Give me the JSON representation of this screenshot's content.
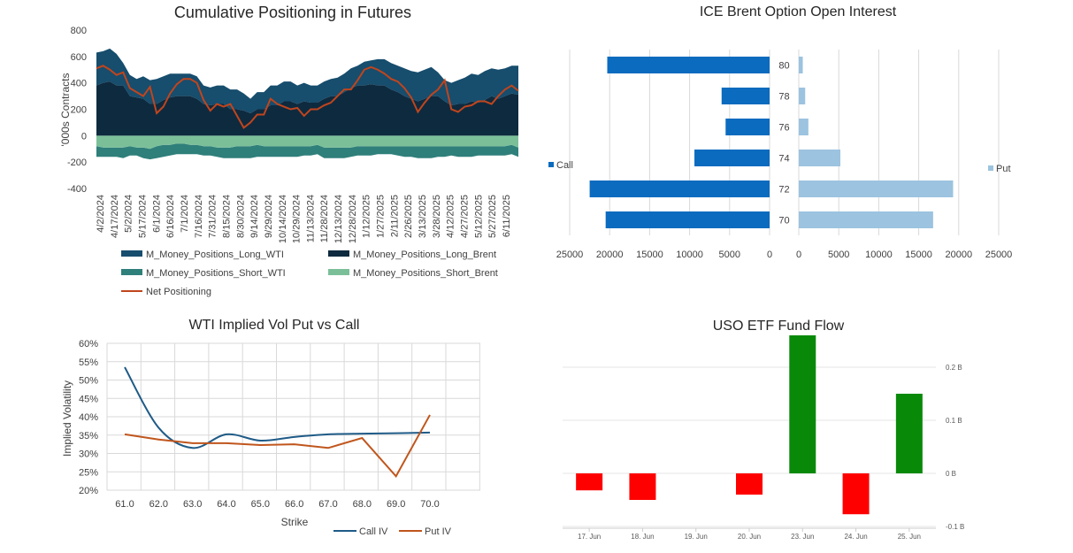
{
  "colors": {
    "long_wti": "#174d6d",
    "long_brent": "#0e2a3f",
    "short_wti": "#2f7f7a",
    "short_brent": "#7bbf99",
    "net": "#c0451d",
    "call_bar": "#0b6bbf",
    "put_bar": "#9cc3df",
    "call_iv": "#1f5b87",
    "put_iv": "#c0561d",
    "flow_pos": "#088a08",
    "flow_neg": "#ff0000",
    "grid": "#d9d9d9"
  },
  "chart_data": [
    {
      "type": "area",
      "title": "Cumulative Positioning in Futures",
      "ylabel": "'000s Contracts",
      "ylim": [
        -400,
        800
      ],
      "yticks": [
        "800",
        "600",
        "400",
        "200",
        "0",
        "-200",
        "-400"
      ],
      "xtick_labels": [
        "4/2/2024",
        "4/17/2024",
        "5/2/2024",
        "5/17/2024",
        "6/1/2024",
        "6/16/2024",
        "7/1/2024",
        "7/16/2024",
        "7/31/2024",
        "8/15/2024",
        "8/30/2024",
        "9/14/2024",
        "9/29/2024",
        "10/14/2024",
        "10/29/2024",
        "11/13/2024",
        "11/28/2024",
        "12/13/2024",
        "12/28/2024",
        "1/12/2025",
        "1/27/2025",
        "2/11/2025",
        "2/26/2025",
        "3/13/2025",
        "3/28/2025",
        "4/12/2025",
        "4/27/2025",
        "5/12/2025",
        "5/27/2025",
        "6/11/2025"
      ],
      "series": [
        {
          "name": "M_Money_Positions_Long_WTI",
          "values": [
            250,
            240,
            250,
            240,
            170,
            160,
            140,
            170,
            180,
            190,
            180,
            180,
            170,
            170,
            170,
            170,
            140,
            135,
            140,
            140,
            150,
            150,
            130,
            110,
            130,
            130,
            150,
            150,
            150,
            150,
            140,
            140,
            130,
            130,
            130,
            130,
            140,
            140,
            150,
            150,
            180,
            180,
            200,
            200,
            200,
            200,
            210,
            210,
            220,
            220,
            220,
            180,
            160,
            170,
            180,
            200,
            210,
            210,
            220,
            210,
            220,
            210,
            210,
            220
          ]
        },
        {
          "name": "M_Money_Positions_Long_Brent",
          "values": [
            380,
            400,
            410,
            380,
            380,
            300,
            290,
            280,
            240,
            240,
            270,
            290,
            300,
            300,
            300,
            280,
            240,
            230,
            240,
            240,
            200,
            200,
            190,
            170,
            200,
            200,
            230,
            230,
            260,
            260,
            240,
            260,
            250,
            250,
            280,
            300,
            300,
            330,
            360,
            380,
            380,
            390,
            380,
            380,
            350,
            330,
            300,
            280,
            260,
            280,
            300,
            300,
            260,
            230,
            240,
            240,
            260,
            250,
            270,
            300,
            280,
            300,
            320,
            310
          ]
        },
        {
          "name": "M_Money_Positions_Short_WTI",
          "values": [
            -80,
            -70,
            -70,
            -70,
            -80,
            -70,
            -60,
            -80,
            -80,
            -90,
            -90,
            -80,
            -80,
            -80,
            -70,
            -70,
            -70,
            -70,
            -70,
            -80,
            -80,
            -90,
            -90,
            -90,
            -90,
            -80,
            -80,
            -80,
            -80,
            -80,
            -80,
            -70,
            -70,
            -70,
            -80,
            -80,
            -80,
            -80,
            -70,
            -70,
            -70,
            -70,
            -60,
            -60,
            -60,
            -70,
            -80,
            -80,
            -90,
            -90,
            -90,
            -80,
            -80,
            -70,
            -80,
            -80,
            -80,
            -70,
            -70,
            -70,
            -70,
            -70,
            -70,
            -70
          ]
        },
        {
          "name": "M_Money_Positions_Short_Brent",
          "values": [
            -80,
            -90,
            -90,
            -90,
            -90,
            -80,
            -90,
            -90,
            -100,
            -80,
            -70,
            -70,
            -60,
            -60,
            -70,
            -70,
            -80,
            -80,
            -90,
            -90,
            -90,
            -80,
            -80,
            -80,
            -70,
            -80,
            -80,
            -80,
            -80,
            -80,
            -80,
            -80,
            -80,
            -70,
            -90,
            -90,
            -90,
            -90,
            -90,
            -80,
            -80,
            -80,
            -80,
            -80,
            -80,
            -80,
            -80,
            -80,
            -80,
            -80,
            -80,
            -80,
            -80,
            -80,
            -80,
            -80,
            -80,
            -80,
            -80,
            -80,
            -80,
            -80,
            -70,
            -90
          ]
        },
        {
          "name": "Net Positioning",
          "values": [
            510,
            530,
            500,
            460,
            480,
            360,
            330,
            300,
            370,
            170,
            220,
            320,
            390,
            430,
            430,
            400,
            270,
            190,
            240,
            220,
            240,
            150,
            60,
            100,
            160,
            160,
            280,
            240,
            220,
            200,
            210,
            150,
            200,
            200,
            230,
            250,
            300,
            350,
            350,
            420,
            500,
            520,
            500,
            470,
            430,
            410,
            360,
            290,
            180,
            250,
            310,
            350,
            420,
            200,
            180,
            220,
            230,
            260,
            260,
            240,
            300,
            350,
            380,
            340
          ]
        }
      ]
    },
    {
      "type": "bar",
      "title": "ICE Brent Option Open Interest",
      "categories": [
        "80",
        "78",
        "76",
        "74",
        "72",
        "70"
      ],
      "series": [
        {
          "name": "Call",
          "values": [
            20300,
            6000,
            5500,
            9400,
            22500,
            20500
          ]
        },
        {
          "name": "Put",
          "values": [
            500,
            800,
            1200,
            5200,
            19300,
            16800
          ]
        }
      ],
      "xticks_left": [
        "25000",
        "20000",
        "15000",
        "10000",
        "5000",
        "0"
      ],
      "xticks_right": [
        "0",
        "5000",
        "10000",
        "15000",
        "20000",
        "25000"
      ],
      "xlim": [
        0,
        25000
      ]
    },
    {
      "type": "line",
      "title": "WTI Implied Vol Put vs Call",
      "xlabel": "Strike",
      "ylabel": "Implied Volatility",
      "categories": [
        "61.0",
        "62.0",
        "63.0",
        "64.0",
        "65.0",
        "66.0",
        "67.0",
        "68.0",
        "69.0",
        "70.0"
      ],
      "ylim": [
        0.2,
        0.6
      ],
      "yticks": [
        "60%",
        "55%",
        "50%",
        "45%",
        "40%",
        "35%",
        "30%",
        "25%",
        "20%"
      ],
      "series": [
        {
          "name": "Call IV",
          "values": [
            0.535,
            0.37,
            0.315,
            0.352,
            0.335,
            0.345,
            0.352,
            0.354,
            0.355,
            0.357
          ]
        },
        {
          "name": "Put IV",
          "values": [
            0.352,
            0.338,
            0.328,
            0.328,
            0.323,
            0.325,
            0.315,
            0.342,
            0.238,
            0.405
          ]
        }
      ]
    },
    {
      "type": "bar",
      "title": "USO ETF Fund Flow",
      "categories": [
        "17. Jun",
        "18. Jun",
        "19. Jun",
        "20. Jun",
        "23. Jun",
        "24. Jun",
        "25. Jun"
      ],
      "values": [
        -0.032,
        -0.05,
        0,
        -0.04,
        0.26,
        -0.077,
        0.15
      ],
      "unit": "B",
      "yticks": [
        "0.2 B",
        "0.1 B",
        "0 B",
        "-0.1 B"
      ],
      "ylim": [
        -0.1,
        0.26
      ]
    }
  ]
}
